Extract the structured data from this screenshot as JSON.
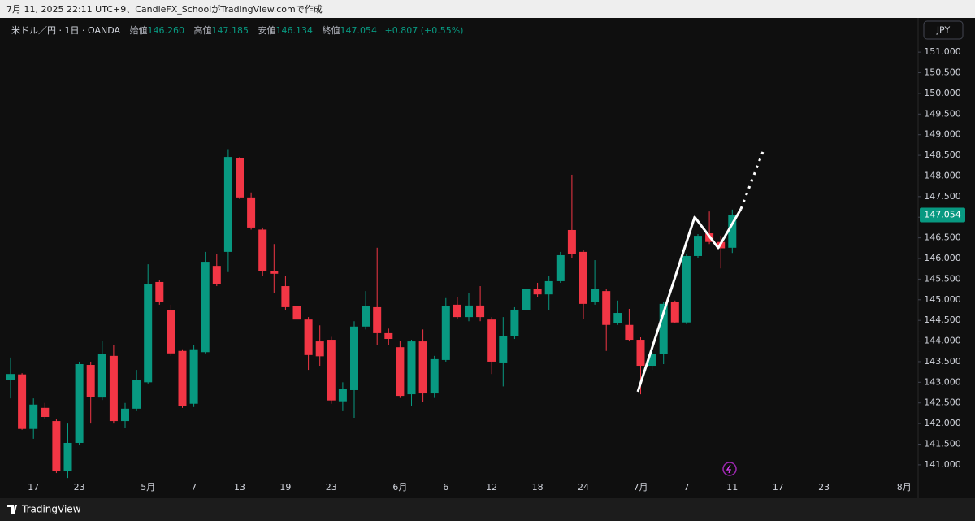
{
  "caption": "7月 11, 2025 22:11 UTC+9、CandleFX_SchoolがTradingView.comで作成",
  "currency": "JPY",
  "footer_brand": "TradingView",
  "chart_data": {
    "type": "candlestick",
    "symbol": "米ドル／円 · 1日 · OANDA",
    "ohlc_legend": {
      "open_label": "始値",
      "open": "146.260",
      "high_label": "高値",
      "high": "147.185",
      "low_label": "安値",
      "low": "146.134",
      "close_label": "終値",
      "close": "147.054",
      "change": "+0.807 (+0.55%)"
    },
    "up_color": "#089981",
    "down_color": "#f23645",
    "grid": false,
    "categories": [
      null,
      null,
      "17",
      null,
      null,
      null,
      "23",
      null,
      null,
      null,
      null,
      null,
      "5月",
      null,
      null,
      null,
      "7",
      null,
      null,
      null,
      "13",
      null,
      null,
      null,
      "19",
      null,
      null,
      null,
      "23",
      null,
      null,
      null,
      null,
      null,
      "6月",
      null,
      null,
      null,
      "6",
      null,
      null,
      null,
      "12",
      null,
      null,
      null,
      "18",
      null,
      null,
      null,
      "24",
      null,
      null,
      null,
      null,
      "7月",
      null,
      null,
      null,
      "7",
      null,
      null,
      null,
      "11",
      null,
      null,
      null,
      "17",
      null,
      null,
      null,
      "23",
      null,
      null,
      null,
      null,
      null,
      null,
      "8月"
    ],
    "open": [
      143.05,
      143.19,
      141.87,
      142.38,
      142.06,
      140.84,
      141.53,
      143.42,
      142.63,
      143.64,
      142.06,
      142.36,
      143.0,
      145.43,
      144.74,
      143.76,
      142.48,
      143.73,
      145.82,
      146.16,
      148.44,
      147.48,
      146.7,
      145.69,
      145.33,
      144.84,
      144.52,
      143.99,
      144.03,
      142.54,
      142.81,
      144.35,
      144.82,
      144.19,
      143.85,
      142.71,
      143.99,
      142.73,
      143.54,
      144.88,
      144.58,
      144.86,
      144.52,
      143.48,
      144.11,
      144.74,
      145.27,
      145.13,
      145.45,
      146.69,
      146.16,
      144.94,
      145.21,
      144.43,
      144.39,
      144.03,
      143.4,
      143.68,
      144.94,
      144.45,
      146.06,
      146.61,
      146.4,
      146.26,
      null,
      null,
      null,
      null,
      null,
      null,
      null,
      null,
      null,
      null,
      null,
      null,
      null,
      null,
      null
    ],
    "high": [
      143.6,
      143.22,
      142.61,
      142.5,
      142.1,
      142.0,
      143.5,
      143.5,
      144.0,
      143.9,
      142.5,
      143.3,
      145.86,
      145.47,
      144.88,
      143.8,
      143.9,
      146.16,
      146.1,
      148.65,
      148.46,
      147.6,
      146.75,
      146.35,
      145.57,
      145.47,
      144.58,
      144.38,
      144.1,
      143.0,
      144.48,
      145.21,
      146.26,
      144.3,
      144.0,
      144.03,
      144.28,
      143.64,
      145.04,
      145.07,
      145.17,
      145.33,
      144.58,
      144.58,
      144.82,
      145.37,
      145.41,
      145.57,
      146.16,
      148.03,
      146.2,
      145.96,
      145.27,
      144.98,
      144.78,
      144.09,
      143.76,
      144.94,
      144.98,
      146.12,
      146.59,
      147.14,
      146.55,
      147.185,
      null,
      null,
      null,
      null,
      null,
      null,
      null,
      null,
      null,
      null,
      null,
      null,
      null,
      null,
      null
    ],
    "low": [
      142.61,
      141.85,
      141.63,
      142.1,
      140.8,
      140.68,
      141.47,
      142.0,
      142.57,
      142.0,
      141.9,
      142.3,
      142.97,
      144.88,
      143.64,
      142.38,
      142.4,
      143.7,
      145.33,
      145.67,
      147.44,
      146.7,
      145.57,
      145.17,
      144.75,
      144.15,
      143.3,
      143.4,
      142.48,
      142.3,
      142.14,
      144.28,
      143.9,
      143.9,
      142.62,
      142.42,
      142.53,
      142.62,
      143.5,
      144.54,
      144.48,
      144.48,
      143.2,
      142.9,
      144.05,
      144.39,
      145.07,
      144.74,
      145.41,
      146.0,
      144.54,
      144.88,
      143.76,
      144.39,
      143.99,
      142.71,
      143.3,
      143.44,
      144.43,
      144.41,
      146.0,
      146.35,
      145.76,
      146.134,
      null,
      null,
      null,
      null,
      null,
      null,
      null,
      null,
      null,
      null,
      null,
      null,
      null,
      null,
      null
    ],
    "close": [
      143.2,
      141.87,
      142.46,
      142.16,
      140.84,
      141.53,
      143.44,
      142.65,
      143.68,
      142.06,
      142.36,
      143.05,
      145.37,
      144.94,
      143.7,
      142.42,
      143.8,
      145.92,
      145.37,
      148.46,
      147.48,
      146.75,
      145.7,
      145.63,
      144.82,
      144.52,
      143.66,
      143.63,
      142.56,
      142.83,
      144.35,
      144.84,
      144.19,
      144.05,
      142.67,
      143.99,
      142.73,
      143.56,
      144.84,
      144.58,
      144.86,
      144.58,
      143.5,
      144.11,
      144.76,
      145.27,
      145.13,
      145.45,
      146.08,
      146.1,
      144.9,
      145.27,
      144.39,
      144.68,
      144.03,
      143.4,
      143.68,
      144.9,
      144.45,
      146.06,
      146.55,
      146.4,
      146.247,
      147.054,
      null,
      null,
      null,
      null,
      null,
      null,
      null,
      null,
      null,
      null,
      null,
      null,
      null,
      null,
      null
    ],
    "ylim": [
      140.21,
      151.83
    ],
    "yticks": [
      {
        "value": 141,
        "label": "141.000"
      },
      {
        "value": 141.5,
        "label": "141.500"
      },
      {
        "value": 142,
        "label": "142.000"
      },
      {
        "value": 142.5,
        "label": "142.500"
      },
      {
        "value": 143,
        "label": "143.000"
      },
      {
        "value": 143.5,
        "label": "143.500"
      },
      {
        "value": 144,
        "label": "144.000"
      },
      {
        "value": 144.5,
        "label": "144.500"
      },
      {
        "value": 145,
        "label": "145.000"
      },
      {
        "value": 145.5,
        "label": "145.500"
      },
      {
        "value": 146,
        "label": "146.000"
      },
      {
        "value": 146.5,
        "label": "146.500"
      },
      {
        "value": 147,
        "label": "147.000"
      },
      {
        "value": 147.5,
        "label": "147.500"
      },
      {
        "value": 148,
        "label": "148.000"
      },
      {
        "value": 148.5,
        "label": "148.500"
      },
      {
        "value": 149,
        "label": "149.000"
      },
      {
        "value": 149.5,
        "label": "149.500"
      },
      {
        "value": 150,
        "label": "150.000"
      },
      {
        "value": 150.5,
        "label": "150.500"
      },
      {
        "value": 151,
        "label": "151.000"
      }
    ]
  }
}
